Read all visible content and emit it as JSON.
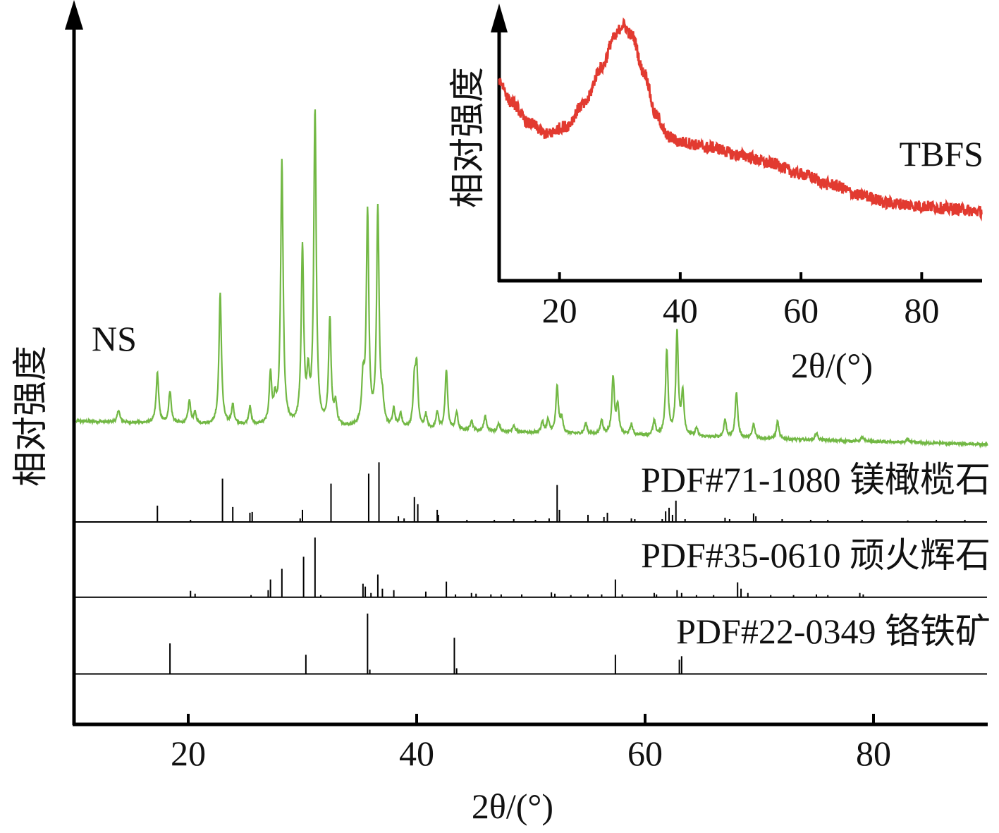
{
  "chart_data": [
    {
      "id": "main",
      "type": "line",
      "title": "",
      "xlabel": "2θ/(°)",
      "ylabel": "相对强度",
      "xlim": [
        10,
        90
      ],
      "ylim": [
        0,
        100
      ],
      "xticks": [
        "20",
        "40",
        "60",
        "80"
      ],
      "xtick_values": [
        20,
        40,
        60,
        80
      ],
      "grid": false,
      "series": [
        {
          "name": "NS",
          "color": "#72b844",
          "baseline_start": 42.7,
          "baseline_end": 39.4,
          "peaks": [
            [
              13.9,
              1.7
            ],
            [
              17.3,
              7
            ],
            [
              18.4,
              4.5
            ],
            [
              20.1,
              3.2
            ],
            [
              20.6,
              1.5
            ],
            [
              22.8,
              18.4
            ],
            [
              23.9,
              2.7
            ],
            [
              25.4,
              2.5
            ],
            [
              27.2,
              7
            ],
            [
              27.6,
              3
            ],
            [
              28.2,
              37
            ],
            [
              30.0,
              24.6
            ],
            [
              30.5,
              6
            ],
            [
              31.1,
              44
            ],
            [
              32.4,
              15
            ],
            [
              32.9,
              3
            ],
            [
              35.3,
              6
            ],
            [
              35.7,
              30
            ],
            [
              36.6,
              30.5
            ],
            [
              37.0,
              3
            ],
            [
              38.0,
              2.5
            ],
            [
              38.6,
              2
            ],
            [
              39.8,
              6
            ],
            [
              40.0,
              8.2
            ],
            [
              40.8,
              2
            ],
            [
              41.8,
              2.5
            ],
            [
              42.6,
              8.4
            ],
            [
              43.5,
              2.5
            ],
            [
              44.8,
              1.5
            ],
            [
              46.0,
              2.2
            ],
            [
              47.2,
              1.2
            ],
            [
              48.5,
              1
            ],
            [
              51.0,
              1.5
            ],
            [
              51.5,
              1.8
            ],
            [
              52.3,
              6.5
            ],
            [
              52.7,
              2
            ],
            [
              54.8,
              1.5
            ],
            [
              56.2,
              2
            ],
            [
              57.2,
              8
            ],
            [
              57.6,
              4
            ],
            [
              58.8,
              1.5
            ],
            [
              60.8,
              2
            ],
            [
              61.9,
              12
            ],
            [
              62.8,
              14.5
            ],
            [
              63.3,
              6
            ],
            [
              64.5,
              1.2
            ],
            [
              67.0,
              2.5
            ],
            [
              68.0,
              6.5
            ],
            [
              69.5,
              2
            ],
            [
              71.6,
              2.5
            ],
            [
              75.0,
              1
            ],
            [
              79,
              0.6
            ],
            [
              83,
              0.5
            ]
          ]
        }
      ],
      "reference_patterns": [
        {
          "name": "PDF#71-1080 镁橄榄石",
          "baseline": 28.5,
          "sticks": [
            [
              17.3,
              2.3
            ],
            [
              20.2,
              0.3
            ],
            [
              23.0,
              6.1
            ],
            [
              23.9,
              2.1
            ],
            [
              25.4,
              1.3
            ],
            [
              25.6,
              1.4
            ],
            [
              29.8,
              0.5
            ],
            [
              30.0,
              1.7
            ],
            [
              32.5,
              5.4
            ],
            [
              35.8,
              6.8
            ],
            [
              36.7,
              8.4
            ],
            [
              38.4,
              0.8
            ],
            [
              38.9,
              0.5
            ],
            [
              39.8,
              3.5
            ],
            [
              40.1,
              2.5
            ],
            [
              41.8,
              1.7
            ],
            [
              41.9,
              1.0
            ],
            [
              44.4,
              0.3
            ],
            [
              46.8,
              0.3
            ],
            [
              48.5,
              0.4
            ],
            [
              50.4,
              0.3
            ],
            [
              51.6,
              0.5
            ],
            [
              52.3,
              5.2
            ],
            [
              52.5,
              1.7
            ],
            [
              55.0,
              1.0
            ],
            [
              56.4,
              0.7
            ],
            [
              56.7,
              1.3
            ],
            [
              58.8,
              0.5
            ],
            [
              59.1,
              0.4
            ],
            [
              61.5,
              0.4
            ],
            [
              61.8,
              1.5
            ],
            [
              62.1,
              2.0
            ],
            [
              62.4,
              1.0
            ],
            [
              62.7,
              3.0
            ],
            [
              63.5,
              0.4
            ],
            [
              67.0,
              0.6
            ],
            [
              67.4,
              0.4
            ],
            [
              69.5,
              1.2
            ],
            [
              69.7,
              0.8
            ],
            [
              72.0,
              0.4
            ],
            [
              74.5,
              0.3
            ],
            [
              76.0,
              0.3
            ],
            [
              79.0,
              0.3
            ],
            [
              83.0,
              0.2
            ],
            [
              85.5,
              0.3
            ],
            [
              88.0,
              0.3
            ]
          ]
        },
        {
          "name": "PDF#35-0610 顽火辉石",
          "baseline": 17.9,
          "sticks": [
            [
              20.2,
              0.9
            ],
            [
              20.6,
              0.5
            ],
            [
              25.5,
              0.3
            ],
            [
              27.0,
              1.0
            ],
            [
              27.2,
              2.5
            ],
            [
              28.2,
              4.0
            ],
            [
              30.1,
              5.7
            ],
            [
              31.1,
              8.4
            ],
            [
              31.6,
              0.3
            ],
            [
              35.3,
              1.9
            ],
            [
              35.5,
              1.5
            ],
            [
              36.0,
              0.6
            ],
            [
              36.6,
              3.2
            ],
            [
              37.0,
              1.2
            ],
            [
              38.0,
              1.0
            ],
            [
              40.8,
              0.8
            ],
            [
              42.6,
              2.2
            ],
            [
              43.4,
              0.4
            ],
            [
              44.8,
              0.6
            ],
            [
              45.2,
              0.5
            ],
            [
              46.5,
              0.4
            ],
            [
              47.4,
              0.4
            ],
            [
              49.2,
              0.4
            ],
            [
              51.8,
              0.7
            ],
            [
              52.1,
              0.5
            ],
            [
              53.5,
              0.3
            ],
            [
              55.0,
              0.4
            ],
            [
              56.2,
              0.4
            ],
            [
              57.4,
              2.5
            ],
            [
              58.0,
              0.4
            ],
            [
              60.8,
              0.6
            ],
            [
              61.0,
              0.4
            ],
            [
              62.8,
              1.0
            ],
            [
              63.2,
              0.6
            ],
            [
              64.5,
              0.3
            ],
            [
              66.0,
              0.3
            ],
            [
              68.1,
              2.1
            ],
            [
              68.4,
              1.2
            ],
            [
              69.0,
              0.6
            ],
            [
              71.0,
              0.3
            ],
            [
              73.0,
              0.3
            ],
            [
              75.0,
              0.4
            ],
            [
              76.0,
              0.3
            ],
            [
              78.8,
              0.6
            ],
            [
              79.1,
              0.4
            ]
          ]
        },
        {
          "name": "PDF#22-0349 铬铁矿",
          "baseline": 7.1,
          "sticks": [
            [
              18.4,
              4.3
            ],
            [
              30.3,
              2.7
            ],
            [
              35.7,
              8.5
            ],
            [
              35.9,
              0.6
            ],
            [
              43.3,
              5.1
            ],
            [
              43.5,
              0.8
            ],
            [
              57.4,
              2.7
            ],
            [
              63.0,
              2.0
            ],
            [
              63.2,
              2.5
            ]
          ]
        }
      ]
    },
    {
      "id": "inset",
      "type": "line",
      "title": "",
      "xlabel": "2θ/(°)",
      "ylabel": "相对强度",
      "xlim": [
        10,
        90
      ],
      "ylim": [
        0,
        100
      ],
      "xticks": [
        "20",
        "40",
        "60",
        "80"
      ],
      "xtick_values": [
        20,
        40,
        60,
        80
      ],
      "grid": false,
      "series": [
        {
          "name": "TBFS",
          "color": "#e23a30",
          "x": [
            10,
            12,
            15,
            18,
            21,
            24,
            27,
            29,
            30.5,
            32,
            34,
            36,
            38,
            40,
            45,
            50,
            55,
            60,
            65,
            70,
            75,
            80,
            85,
            90
          ],
          "y": [
            75,
            67,
            59,
            55,
            58,
            66,
            80,
            91,
            96,
            92,
            78,
            62,
            54,
            52,
            50,
            47,
            44,
            40,
            36,
            32,
            29,
            28,
            27,
            26
          ]
        }
      ]
    }
  ]
}
